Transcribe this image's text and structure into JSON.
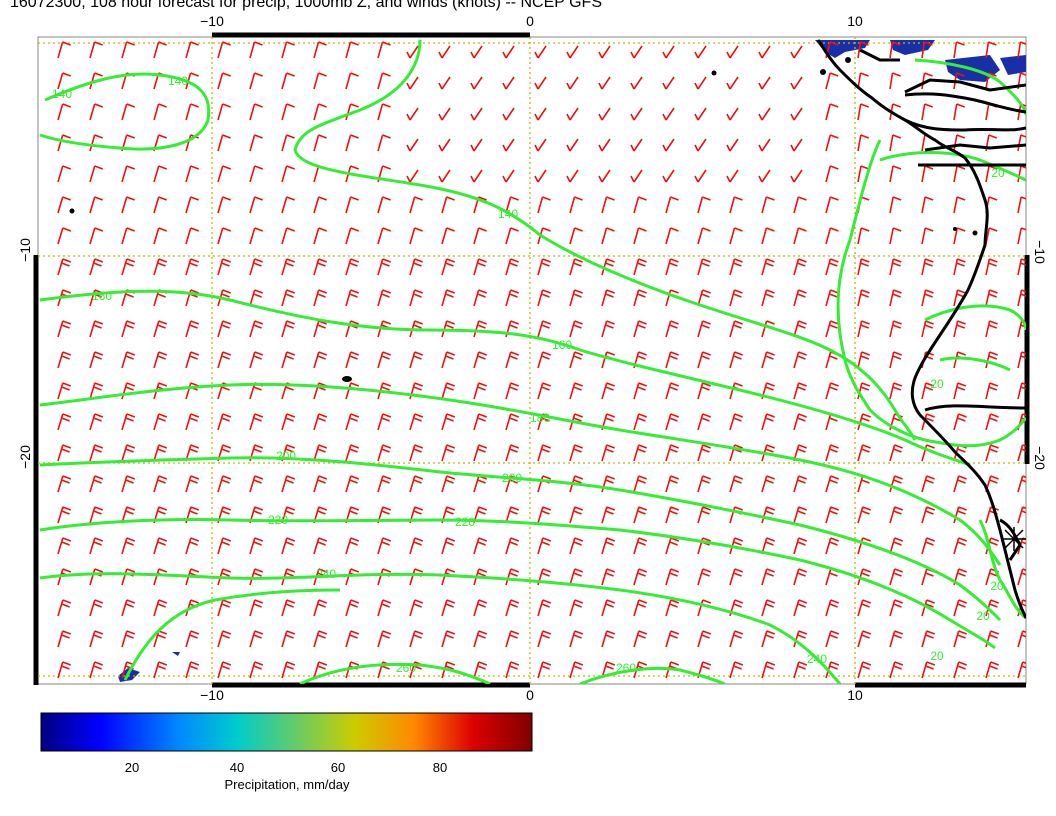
{
  "title": "16072300, 108 hour forecast for precip, 1000mb Z, and winds (knots) -- NCEP GFS",
  "colors": {
    "barb": "#ee1111",
    "contour": "#33ee33",
    "grid": "#c8b400",
    "coast": "#000000",
    "precip": "#1a2ea8"
  },
  "axes": {
    "top_labels": [
      "−10",
      "0",
      "10"
    ],
    "bottom_labels": [
      "−10",
      "0",
      "10"
    ],
    "left_labels": [
      "−10",
      "−20"
    ],
    "right_labels": [
      "−10",
      "−20"
    ]
  },
  "contour_labels": [
    "140",
    "140",
    "140",
    "160",
    "160",
    "180",
    "200",
    "200",
    "220",
    "220",
    "240",
    "260",
    "260",
    "240",
    "20",
    "20",
    "20",
    "20",
    "20"
  ],
  "colorbar": {
    "ticks": [
      "20",
      "40",
      "60",
      "80"
    ],
    "title": "Precipitation, mm/day",
    "colors": [
      "#000080",
      "#0000ff",
      "#0088ff",
      "#00cccc",
      "#66cc66",
      "#cccc00",
      "#ff8800",
      "#dd0000",
      "#800000"
    ]
  }
}
